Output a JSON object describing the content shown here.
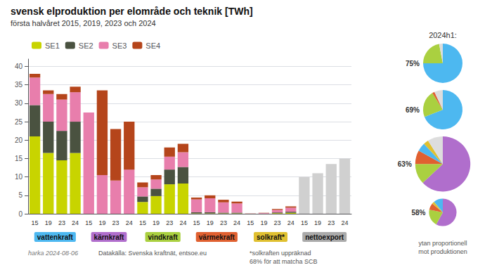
{
  "chart_data": [
    {
      "type": "bar",
      "title": "svensk elproduktion per elområde och teknik [TWh]",
      "subtitle": "första halvåret 2015, 2019, 2023 och 2024",
      "stacked": true,
      "categories": [
        "vattenkraft",
        "kärnkraft",
        "vindkraft",
        "värmekraft",
        "solkraft*",
        "nettoexport"
      ],
      "subcategories": [
        "15",
        "19",
        "23",
        "24"
      ],
      "category_colors": [
        "#4db8f0",
        "#b06ecc",
        "#aad040",
        "#e06030",
        "#e0c030",
        "#aaaaaa"
      ],
      "series": [
        {
          "name": "SE1",
          "color": "#c8d400",
          "values": [
            [
              21.0,
              16.5,
              14.5,
              16.5
            ],
            [
              0,
              0,
              0,
              0
            ],
            [
              3.2,
              4.8,
              8.0,
              8.2
            ],
            [
              0.1,
              0.1,
              0.1,
              0.1
            ],
            [
              0.01,
              0.02,
              0.15,
              0.25
            ],
            [
              null,
              null,
              null,
              null
            ]
          ]
        },
        {
          "name": "SE2",
          "color": "#4a5240",
          "values": [
            [
              8.5,
              8.5,
              8.0,
              8.5
            ],
            [
              0,
              0,
              0,
              0
            ],
            [
              1.5,
              2.0,
              4.0,
              4.5
            ],
            [
              0.3,
              0.3,
              0.2,
              0.2
            ],
            [
              0.01,
              0.02,
              0.2,
              0.3
            ],
            [
              null,
              null,
              null,
              null
            ]
          ]
        },
        {
          "name": "SE3",
          "color": "#e87eac",
          "values": [
            [
              7.5,
              7.5,
              8.5,
              8.0
            ],
            [
              27.5,
              10.5,
              9.0,
              12.0
            ],
            [
              2.5,
              2.5,
              3.5,
              4.0
            ],
            [
              3.5,
              3.8,
              2.8,
              2.5
            ],
            [
              0.05,
              0.15,
              0.7,
              1.1
            ],
            [
              null,
              null,
              null,
              null
            ]
          ]
        },
        {
          "name": "SE4",
          "color": "#b5451b",
          "values": [
            [
              1.0,
              1.0,
              1.5,
              1.5
            ],
            [
              0.0,
              23.0,
              14.0,
              13.0
            ],
            [
              1.3,
              1.2,
              2.5,
              2.3
            ],
            [
              0.5,
              0.8,
              0.7,
              0.5
            ],
            [
              0.02,
              0.06,
              0.25,
              0.35
            ],
            [
              null,
              null,
              null,
              null
            ]
          ]
        },
        {
          "color": "#d0d0d0",
          "values": [
            [
              null,
              null,
              null,
              null
            ],
            [
              null,
              null,
              null,
              null
            ],
            [
              null,
              null,
              null,
              null
            ],
            [
              null,
              null,
              null,
              null
            ],
            [
              null,
              null,
              null,
              null
            ],
            [
              10.0,
              11.0,
              13.5,
              15.0
            ]
          ]
        }
      ],
      "ylim": [
        0,
        42
      ],
      "yticks": [
        0,
        5,
        10,
        15,
        20,
        25,
        30,
        35,
        40
      ],
      "grid": true,
      "legend": "top",
      "annotations": [
        "harka 2024-08-06",
        "Datakälla: Svenska kraftnät, entsoe.eu",
        "*solkraften uppräknad",
        "68% för att matcha SCB"
      ]
    },
    {
      "type": "pie",
      "title": "2024h1:",
      "values": [
        75,
        22,
        3
      ],
      "value_labels": [
        "75%",
        null,
        null
      ],
      "colors": [
        "#4db8f0",
        "#aad040",
        "#dddddd"
      ],
      "scale": 1.0
    },
    {
      "type": "pie",
      "values": [
        69,
        22,
        2,
        7
      ],
      "value_labels": [
        "69%",
        null,
        null,
        null
      ],
      "colors": [
        "#4db8f0",
        "#aad040",
        "#e06030",
        "#dddddd"
      ],
      "scale": 1.0
    },
    {
      "type": "pie",
      "values": [
        63,
        12,
        8,
        5,
        3,
        9
      ],
      "value_labels": [
        "63%",
        null,
        null,
        null,
        null,
        null
      ],
      "colors": [
        "#b06ecc",
        "#aad040",
        "#e06030",
        "#4db8f0",
        "#e0c030",
        "#dddddd"
      ],
      "scale": 1.4
    },
    {
      "type": "pie",
      "values": [
        58,
        20,
        8,
        3,
        11
      ],
      "value_labels": [
        "58%",
        null,
        null,
        null,
        null
      ],
      "colors": [
        "#b06ecc",
        "#aad040",
        "#e06030",
        "#e0c030",
        "#4db8f0"
      ],
      "scale": 0.7,
      "annotations": [
        "ytan proportionell",
        "mot produktionen"
      ]
    }
  ]
}
